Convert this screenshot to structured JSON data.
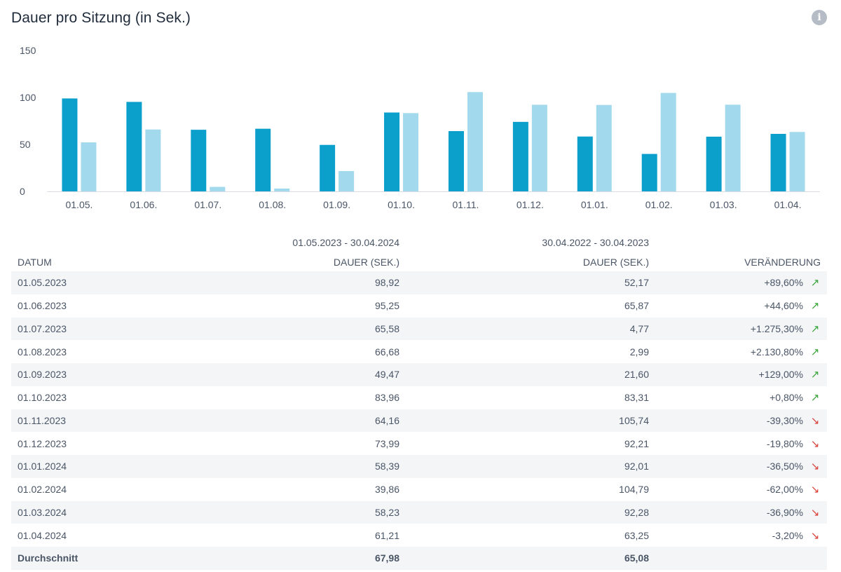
{
  "header": {
    "title": "Dauer pro Sitzung (in Sek.)",
    "info_icon": "info-icon"
  },
  "colors": {
    "current": "#0b9fcc",
    "previous": "#a3d9ec",
    "up": "#3aa53a",
    "down": "#d9423b"
  },
  "chart_data": {
    "type": "bar",
    "title": "Dauer pro Sitzung (in Sek.)",
    "categories": [
      "01.05.",
      "01.06.",
      "01.07.",
      "01.08.",
      "01.09.",
      "01.10.",
      "01.11.",
      "01.12.",
      "01.01.",
      "01.02.",
      "01.03.",
      "01.04."
    ],
    "series": [
      {
        "name": "01.05.2023 - 30.04.2024",
        "values": [
          98.92,
          95.25,
          65.58,
          66.68,
          49.47,
          83.96,
          64.16,
          73.99,
          58.39,
          39.86,
          58.23,
          61.21
        ]
      },
      {
        "name": "30.04.2022 - 30.04.2023",
        "values": [
          52.17,
          65.87,
          4.77,
          2.99,
          21.6,
          83.31,
          105.74,
          92.21,
          92.01,
          104.79,
          92.28,
          63.25
        ]
      }
    ],
    "yticks": [
      "0",
      "50",
      "100",
      "150"
    ],
    "ylim": [
      0,
      150
    ],
    "xlabel": "",
    "ylabel": ""
  },
  "table": {
    "period_current": "01.05.2023 - 30.04.2024",
    "period_previous": "30.04.2022 - 30.04.2023",
    "headers": {
      "date": "DATUM",
      "current": "DAUER (SEK.)",
      "previous": "DAUER (SEK.)",
      "change": "VERÄNDERUNG"
    },
    "rows": [
      {
        "date": "01.05.2023",
        "current": "98,92",
        "previous": "52,17",
        "change": "+89,60%",
        "dir": "up"
      },
      {
        "date": "01.06.2023",
        "current": "95,25",
        "previous": "65,87",
        "change": "+44,60%",
        "dir": "up"
      },
      {
        "date": "01.07.2023",
        "current": "65,58",
        "previous": "4,77",
        "change": "+1.275,30%",
        "dir": "up"
      },
      {
        "date": "01.08.2023",
        "current": "66,68",
        "previous": "2,99",
        "change": "+2.130,80%",
        "dir": "up"
      },
      {
        "date": "01.09.2023",
        "current": "49,47",
        "previous": "21,60",
        "change": "+129,00%",
        "dir": "up"
      },
      {
        "date": "01.10.2023",
        "current": "83,96",
        "previous": "83,31",
        "change": "+0,80%",
        "dir": "up"
      },
      {
        "date": "01.11.2023",
        "current": "64,16",
        "previous": "105,74",
        "change": "-39,30%",
        "dir": "down"
      },
      {
        "date": "01.12.2023",
        "current": "73,99",
        "previous": "92,21",
        "change": "-19,80%",
        "dir": "down"
      },
      {
        "date": "01.01.2024",
        "current": "58,39",
        "previous": "92,01",
        "change": "-36,50%",
        "dir": "down"
      },
      {
        "date": "01.02.2024",
        "current": "39,86",
        "previous": "104,79",
        "change": "-62,00%",
        "dir": "down"
      },
      {
        "date": "01.03.2024",
        "current": "58,23",
        "previous": "92,28",
        "change": "-36,90%",
        "dir": "down"
      },
      {
        "date": "01.04.2024",
        "current": "61,21",
        "previous": "63,25",
        "change": "-3,20%",
        "dir": "down"
      }
    ],
    "average": {
      "label": "Durchschnitt",
      "current": "67,98",
      "previous": "65,08"
    }
  }
}
